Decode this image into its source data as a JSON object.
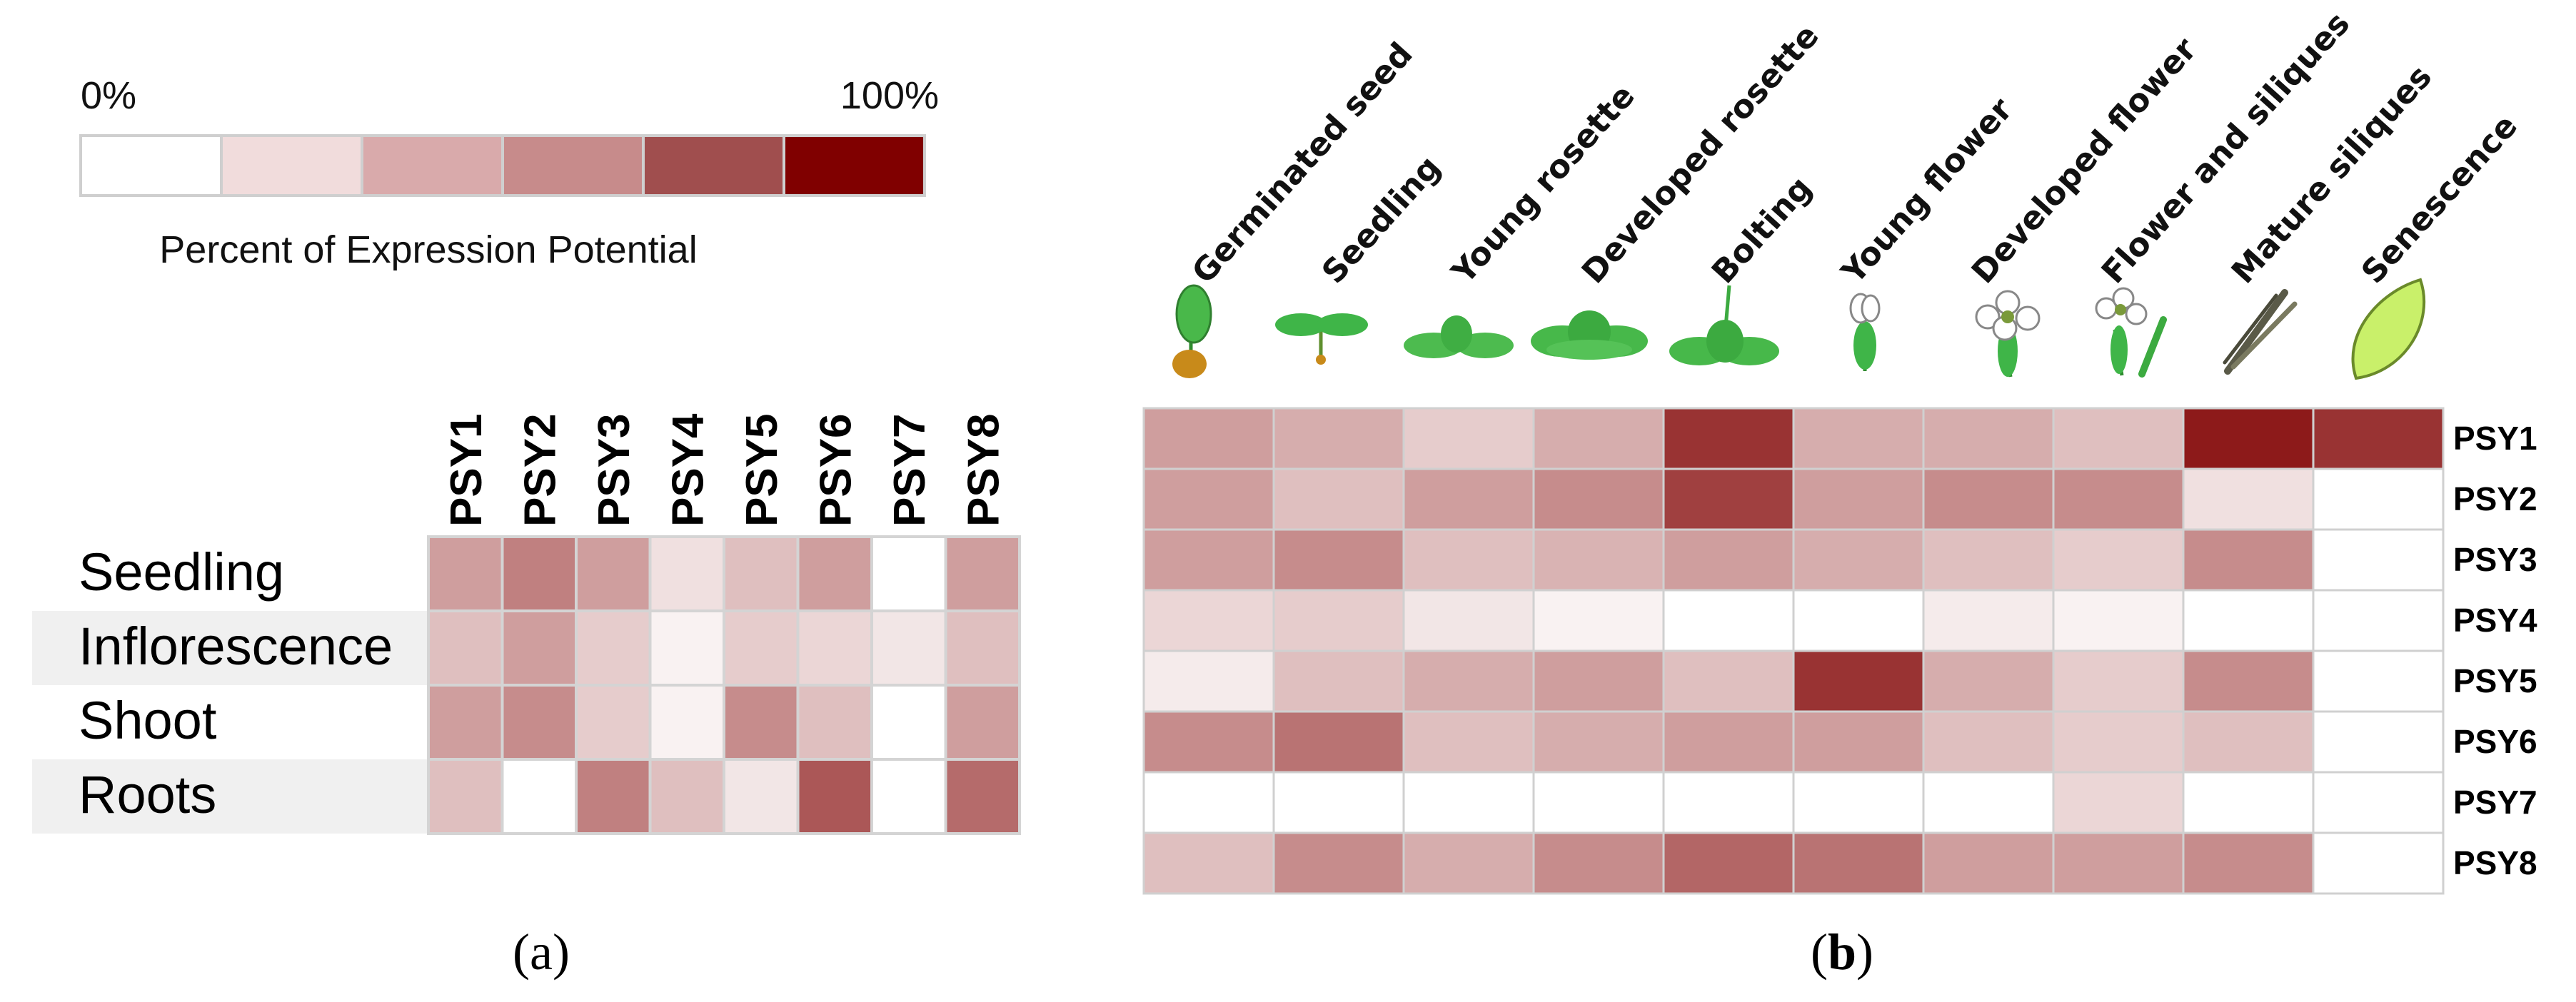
{
  "legend": {
    "min_label": "0%",
    "max_label": "100%",
    "title": "Percent of Expression Potential",
    "swatches": [
      "#ffffff",
      "#f1dcdc",
      "#d9aaab",
      "#c78b8b",
      "#a04e4e",
      "#800000"
    ]
  },
  "panel_a": {
    "label": "(a)"
  },
  "panel_b": {
    "label_open": "(",
    "label_letter": "b",
    "label_close": ")"
  },
  "chart_data": [
    {
      "type": "heatmap",
      "title": "Percent of Expression Potential",
      "columns": [
        "PSY1",
        "PSY2",
        "PSY3",
        "PSY4",
        "PSY5",
        "PSY6",
        "PSY7",
        "PSY8"
      ],
      "rows": [
        "Seedling",
        "Inflorescence",
        "Shoot",
        "Roots"
      ],
      "value_unit": "percent of expression potential (0-100)",
      "values": [
        [
          38,
          50,
          38,
          12,
          25,
          38,
          0,
          38
        ],
        [
          25,
          38,
          20,
          5,
          20,
          16,
          10,
          25
        ],
        [
          38,
          45,
          20,
          5,
          45,
          25,
          0,
          38
        ],
        [
          25,
          0,
          50,
          25,
          10,
          66,
          0,
          58
        ]
      ]
    },
    {
      "type": "heatmap",
      "title": "Percent of Expression Potential",
      "columns": [
        "Germinated seed",
        "Seedling",
        "Young rosette",
        "Developed rosette",
        "Bolting",
        "Young flower",
        "Developed flower",
        "Flower and siliques",
        "Mature siliques",
        "Senescence"
      ],
      "rows": [
        "PSY1",
        "PSY2",
        "PSY3",
        "PSY4",
        "PSY5",
        "PSY6",
        "PSY7",
        "PSY8"
      ],
      "value_unit": "percent of expression potential (0-100)",
      "values": [
        [
          38,
          32,
          20,
          32,
          80,
          32,
          32,
          25,
          90,
          80
        ],
        [
          38,
          25,
          38,
          45,
          75,
          38,
          45,
          45,
          12,
          0
        ],
        [
          38,
          45,
          25,
          30,
          38,
          32,
          25,
          20,
          45,
          0
        ],
        [
          16,
          20,
          10,
          5,
          0,
          0,
          8,
          5,
          0,
          0
        ],
        [
          8,
          25,
          32,
          38,
          25,
          80,
          32,
          20,
          45,
          0
        ],
        [
          45,
          55,
          25,
          32,
          38,
          38,
          25,
          20,
          25,
          0
        ],
        [
          0,
          0,
          0,
          0,
          0,
          0,
          0,
          16,
          0,
          0
        ],
        [
          25,
          45,
          32,
          45,
          60,
          55,
          38,
          38,
          45,
          0
        ]
      ]
    }
  ]
}
